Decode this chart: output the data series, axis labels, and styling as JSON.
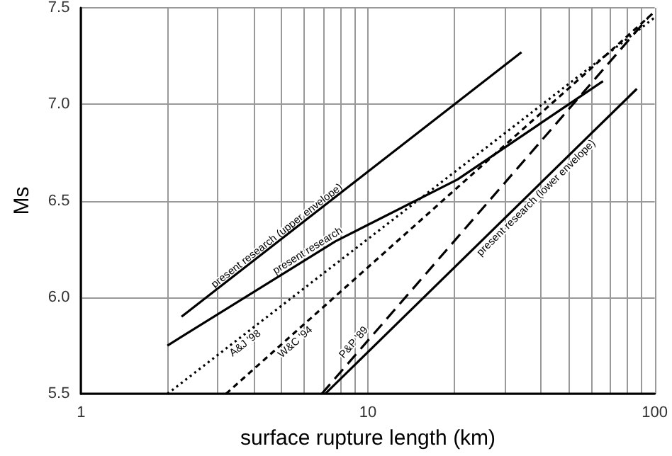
{
  "chart_data": {
    "type": "line",
    "xlabel": "surface rupture length (km)",
    "ylabel": "Ms",
    "log": "x",
    "grid": true,
    "marker": "none",
    "xlim": [
      1,
      100
    ],
    "ylim": [
      5.5,
      7.5
    ],
    "xticks": [
      1,
      {
        "value": 2,
        "label": null
      },
      {
        "value": 3,
        "label": null
      },
      {
        "value": 4,
        "label": null
      },
      {
        "value": 5,
        "label": null
      },
      {
        "value": 6,
        "label": null
      },
      {
        "value": 7,
        "label": null
      },
      {
        "value": 8,
        "label": null
      },
      {
        "value": 9,
        "label": null
      },
      10,
      {
        "value": 20,
        "label": null
      },
      {
        "value": 30,
        "label": null
      },
      {
        "value": 40,
        "label": null
      },
      {
        "value": 50,
        "label": null
      },
      {
        "value": 60,
        "label": null
      },
      {
        "value": 70,
        "label": null
      },
      {
        "value": 80,
        "label": null
      },
      {
        "value": 90,
        "label": null
      },
      100
    ],
    "yticks": [
      5.5,
      {
        "value": 6,
        "label": "6.0"
      },
      6.5,
      {
        "value": 7,
        "label": "7.0"
      },
      7.5
    ],
    "series": [
      {
        "name": "present research (upper envelope)",
        "color": "#000000",
        "line_style": "solid",
        "x": [
          2.24,
          34.3
        ],
        "values": [
          5.9,
          7.27
        ]
      },
      {
        "name": "present research",
        "color": "#000000",
        "line_style": "solid",
        "x": [
          2,
          7.7,
          20.5,
          66
        ],
        "values": [
          5.75,
          6.29,
          6.61,
          7.12
        ]
      },
      {
        "name": "A&J '98",
        "color": "#000000",
        "line_style": "dotted",
        "x": [
          2,
          100
        ],
        "values": [
          5.5,
          7.45
        ]
      },
      {
        "name": "W&C '94",
        "color": "#000000",
        "line_style": "dashed",
        "x": [
          3.2,
          100
        ],
        "values": [
          5.5,
          7.48
        ]
      },
      {
        "name": "P&P '89",
        "color": "#000000",
        "line_style": "dashed",
        "x": [
          6.9,
          95
        ],
        "values": [
          5.5,
          7.45
        ]
      },
      {
        "name": "present research (lower envelope)",
        "color": "#000000",
        "line_style": "solid",
        "x": [
          7.1,
          86.6
        ],
        "values": [
          5.5,
          7.08
        ]
      }
    ]
  }
}
